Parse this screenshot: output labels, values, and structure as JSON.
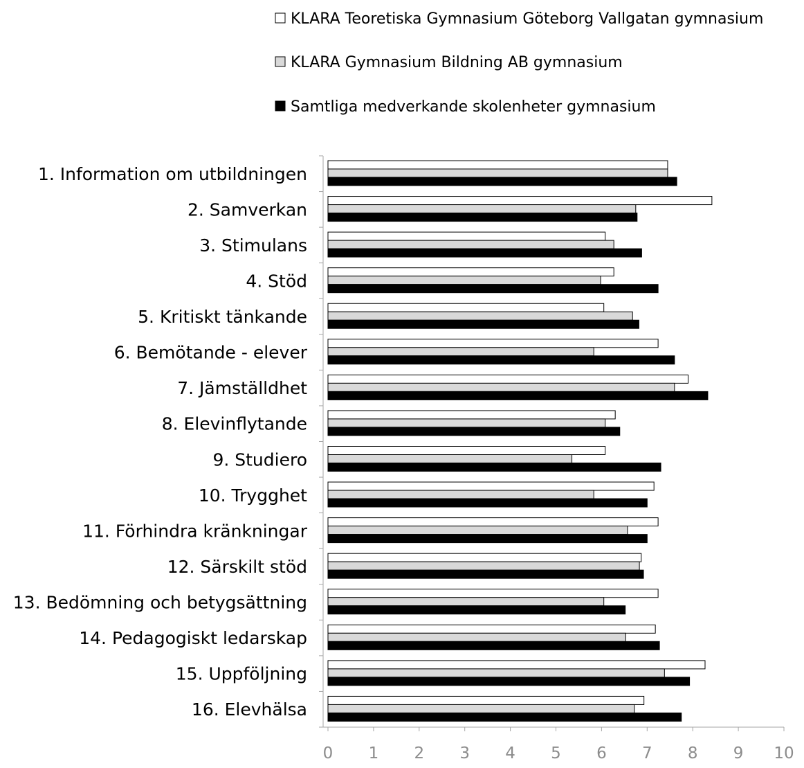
{
  "chart_data": {
    "type": "bar",
    "orientation": "horizontal",
    "title": "",
    "xlabel": "",
    "ylabel": "",
    "xlim": [
      0,
      10
    ],
    "x_ticks": [
      "0",
      "1",
      "2",
      "3",
      "4",
      "5",
      "6",
      "7",
      "8",
      "9",
      "10"
    ],
    "grid": false,
    "legend_position": "top",
    "categories": [
      "1. Information om utbildningen",
      "2. Samverkan",
      "3. Stimulans",
      "4. Stöd",
      "5. Kritiskt tänkande",
      "6. Bemötande - elever",
      "7. Jämställdhet",
      "8. Elevinflytande",
      "9. Studiero",
      "10. Trygghet",
      "11. Förhindra kränkningar",
      "12. Särskilt stöd",
      "13. Bedömning och betygsättning",
      "14. Pedagogiskt ledarskap",
      "15. Uppföljning",
      "16. Elevhälsa"
    ],
    "series": [
      {
        "name": "KLARA Teoretiska Gymnasium Göteborg Vallgatan gymnasium",
        "color": "#ffffff",
        "values": [
          7.45,
          8.42,
          6.08,
          6.27,
          6.05,
          7.24,
          7.9,
          6.3,
          6.08,
          7.15,
          7.24,
          6.87,
          7.24,
          7.18,
          8.27,
          6.93
        ]
      },
      {
        "name": "KLARA Gymnasium Bildning AB gymnasium",
        "color": "#d9d9d9",
        "values": [
          7.45,
          6.75,
          6.27,
          5.98,
          6.68,
          5.83,
          7.6,
          6.08,
          5.35,
          5.83,
          6.57,
          6.83,
          6.05,
          6.53,
          7.38,
          6.72
        ]
      },
      {
        "name": "Samtliga medverkande skolenheter gymnasium",
        "color": "#000000",
        "values": [
          7.65,
          6.78,
          6.88,
          7.24,
          6.82,
          7.6,
          8.33,
          6.4,
          7.3,
          7.0,
          7.0,
          6.92,
          6.52,
          7.27,
          7.93,
          7.75
        ]
      }
    ]
  }
}
